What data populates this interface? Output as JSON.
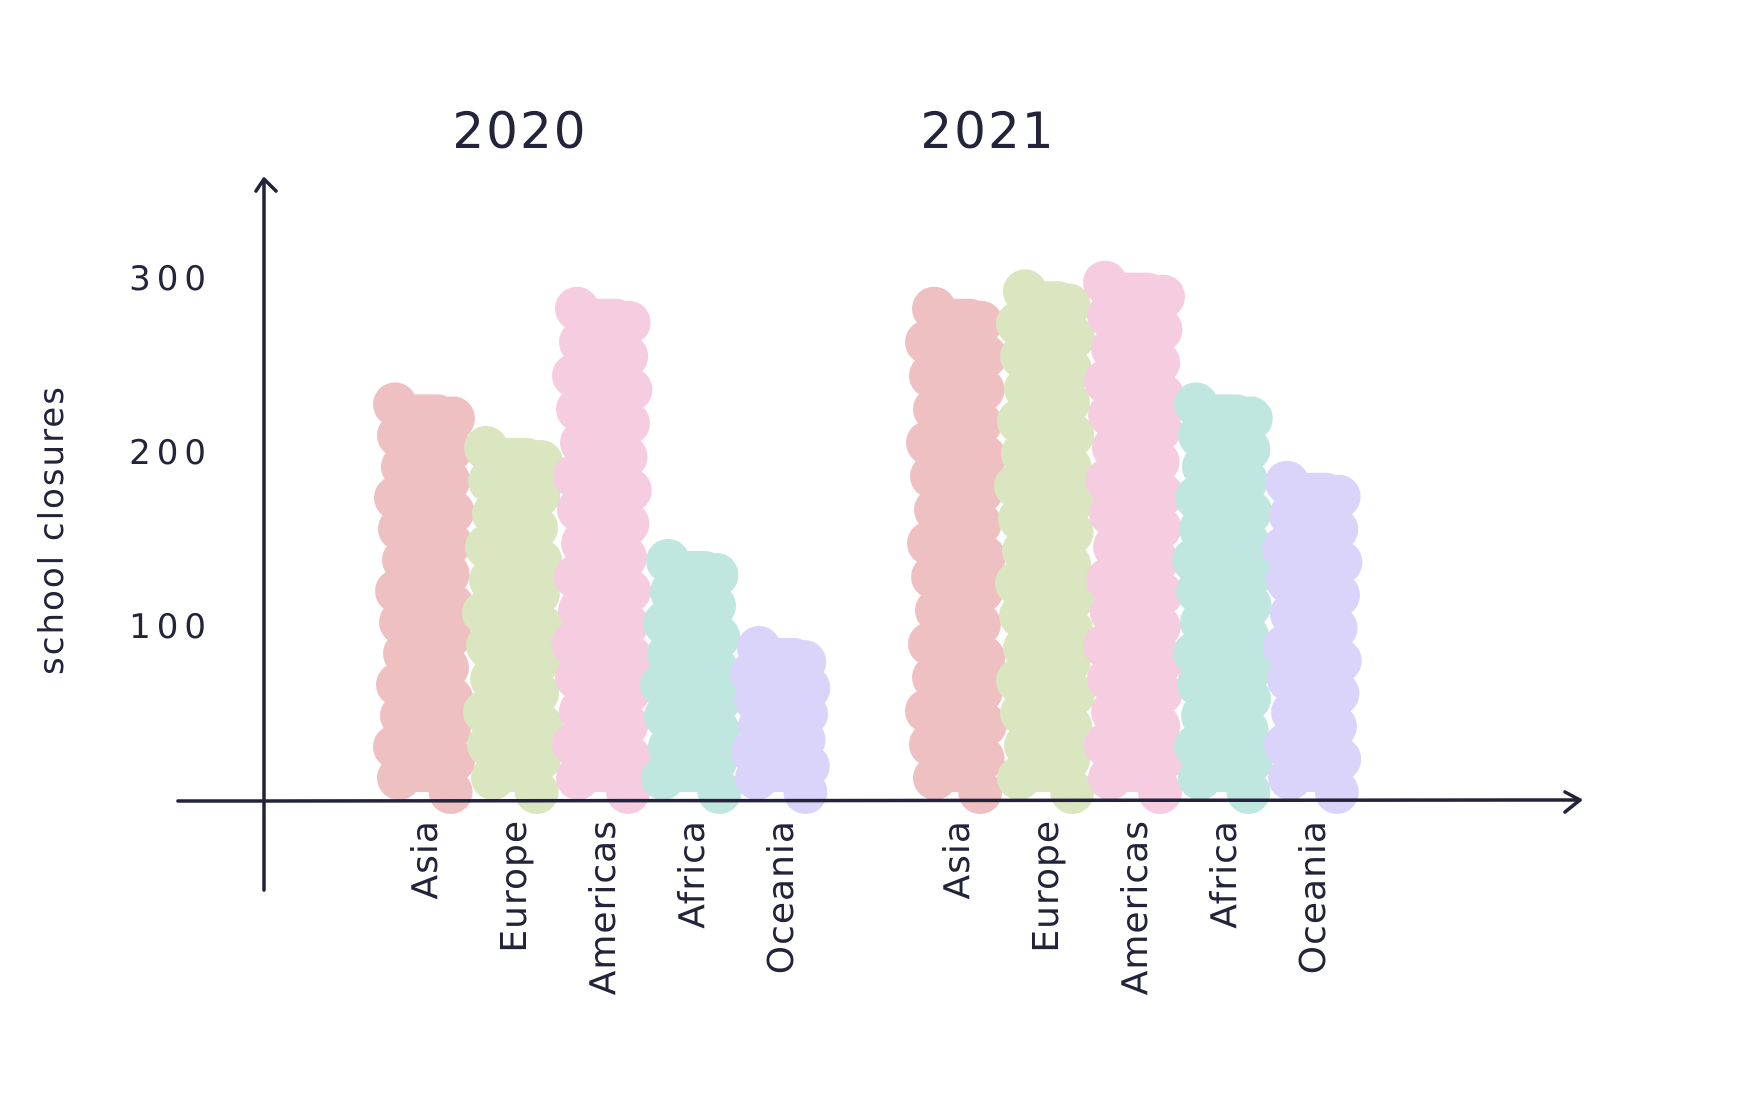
{
  "chart_data": {
    "type": "bar",
    "ylabel": "school closures",
    "xlabel": "",
    "yticks": [
      100,
      200,
      300
    ],
    "ylim": [
      0,
      360
    ],
    "grid": false,
    "groups": [
      {
        "name": "2020",
        "categories": [
          "Asia",
          "Europe",
          "Americas",
          "Africa",
          "Oceania"
        ],
        "values": [
          240,
          215,
          295,
          150,
          100
        ]
      },
      {
        "name": "2021",
        "categories": [
          "Asia",
          "Europe",
          "Americas",
          "Africa",
          "Oceania"
        ],
        "values": [
          295,
          305,
          310,
          240,
          195
        ]
      }
    ],
    "colors": [
      "#efc0c2",
      "#d9e6c0",
      "#f6cde0",
      "#c0e6e0",
      "#dad4fa"
    ]
  }
}
